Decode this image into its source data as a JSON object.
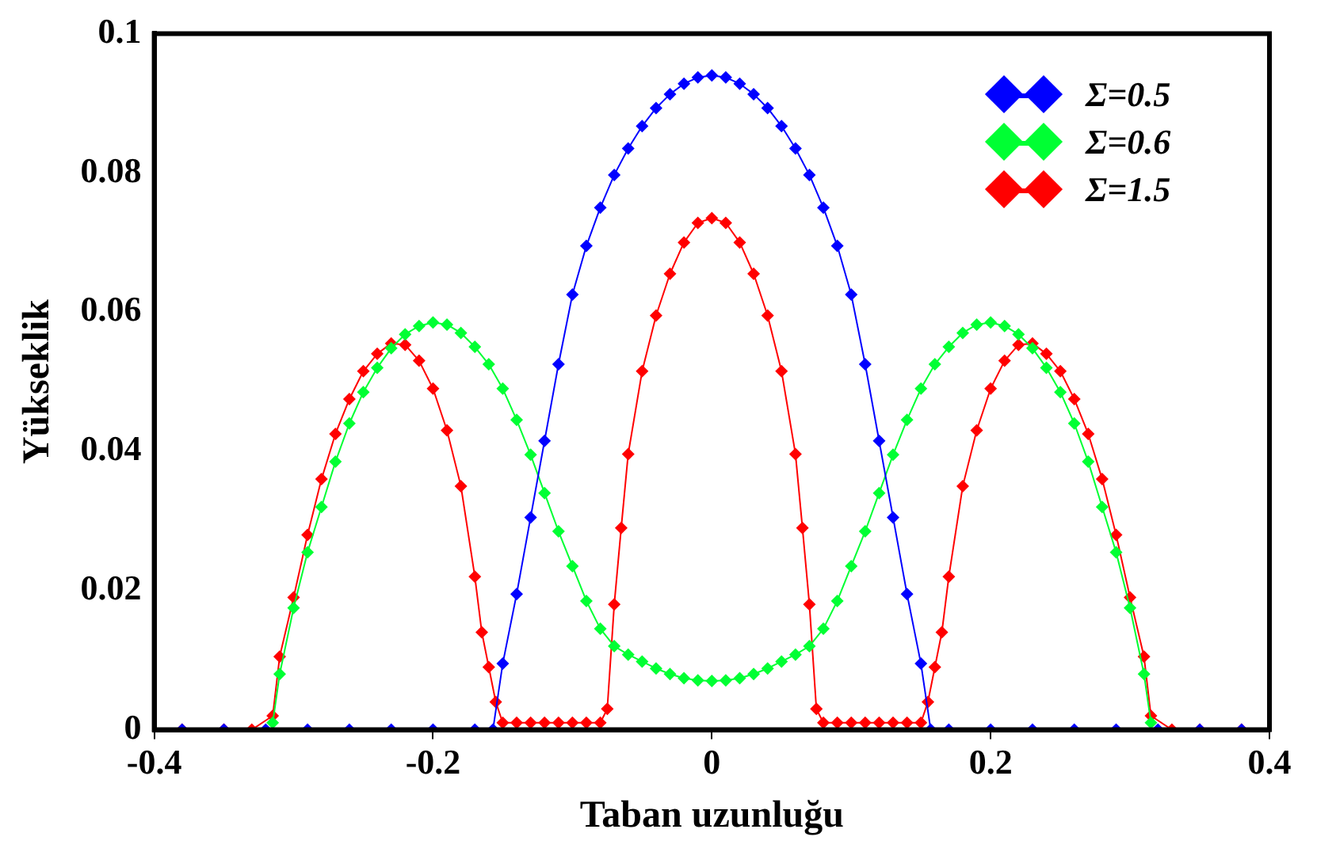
{
  "chart_data": {
    "type": "line",
    "xlabel": "Taban uzunluğu",
    "ylabel": "Yükseklik",
    "xlim": [
      -0.4,
      0.4
    ],
    "xticks": [
      -0.4,
      -0.2,
      0,
      0.2,
      0.4
    ],
    "ylim": [
      0,
      0.1
    ],
    "yticks": [
      0,
      0.02,
      0.04,
      0.06,
      0.08,
      0.1
    ],
    "grid": false,
    "legend": "top right",
    "marker": "diamond",
    "line_style": "solid",
    "series": [
      {
        "name": "Σ=0.5",
        "color": "#0000ff",
        "x": [
          -0.38,
          -0.35,
          -0.32,
          -0.29,
          -0.26,
          -0.23,
          -0.2,
          -0.17,
          -0.157,
          -0.15,
          -0.14,
          -0.13,
          -0.12,
          -0.11,
          -0.1,
          -0.09,
          -0.08,
          -0.07,
          -0.06,
          -0.05,
          -0.04,
          -0.03,
          -0.02,
          -0.01,
          0,
          0.01,
          0.02,
          0.03,
          0.04,
          0.05,
          0.06,
          0.07,
          0.08,
          0.09,
          0.1,
          0.11,
          0.12,
          0.13,
          0.14,
          0.15,
          0.157,
          0.17,
          0.2,
          0.23,
          0.26,
          0.29,
          0.32,
          0.35,
          0.38
        ],
        "values": [
          0,
          0,
          0,
          0,
          0,
          0,
          0,
          0,
          0,
          0.0095,
          0.0195,
          0.0305,
          0.0415,
          0.0525,
          0.0625,
          0.0695,
          0.075,
          0.0797,
          0.0835,
          0.0867,
          0.0893,
          0.0913,
          0.0928,
          0.0937,
          0.094,
          0.0937,
          0.0928,
          0.0913,
          0.0893,
          0.0867,
          0.0835,
          0.0797,
          0.075,
          0.0695,
          0.0625,
          0.0525,
          0.0415,
          0.0305,
          0.0195,
          0.0095,
          0,
          0,
          0,
          0,
          0,
          0,
          0,
          0,
          0
        ]
      },
      {
        "name": "Σ=0.6",
        "color": "#00ff33",
        "x": [
          -0.315,
          -0.31,
          -0.3,
          -0.29,
          -0.28,
          -0.27,
          -0.26,
          -0.25,
          -0.24,
          -0.23,
          -0.22,
          -0.21,
          -0.2,
          -0.19,
          -0.18,
          -0.17,
          -0.16,
          -0.15,
          -0.14,
          -0.13,
          -0.12,
          -0.11,
          -0.1,
          -0.09,
          -0.08,
          -0.07,
          -0.06,
          -0.05,
          -0.04,
          -0.03,
          -0.02,
          -0.01,
          0,
          0.01,
          0.02,
          0.03,
          0.04,
          0.05,
          0.06,
          0.07,
          0.08,
          0.09,
          0.1,
          0.11,
          0.12,
          0.13,
          0.14,
          0.15,
          0.16,
          0.17,
          0.18,
          0.19,
          0.2,
          0.21,
          0.22,
          0.23,
          0.24,
          0.25,
          0.26,
          0.27,
          0.28,
          0.29,
          0.3,
          0.31,
          0.315
        ],
        "values": [
          0.001,
          0.008,
          0.0175,
          0.0255,
          0.032,
          0.0385,
          0.044,
          0.0485,
          0.052,
          0.0548,
          0.0568,
          0.058,
          0.0585,
          0.0582,
          0.057,
          0.055,
          0.0525,
          0.049,
          0.0445,
          0.0395,
          0.034,
          0.0285,
          0.0235,
          0.0185,
          0.0145,
          0.012,
          0.0108,
          0.0098,
          0.0088,
          0.008,
          0.0074,
          0.0071,
          0.007,
          0.0071,
          0.0074,
          0.008,
          0.0088,
          0.0098,
          0.0108,
          0.012,
          0.0145,
          0.0185,
          0.0235,
          0.0285,
          0.034,
          0.0395,
          0.0445,
          0.049,
          0.0525,
          0.055,
          0.057,
          0.0582,
          0.0585,
          0.058,
          0.0568,
          0.0548,
          0.052,
          0.0485,
          0.044,
          0.0385,
          0.032,
          0.0255,
          0.0175,
          0.008,
          0.001
        ]
      },
      {
        "name": "Σ=1.5",
        "color": "#ff0000",
        "x": [
          -0.38,
          -0.35,
          -0.33,
          -0.315,
          -0.31,
          -0.3,
          -0.29,
          -0.28,
          -0.27,
          -0.26,
          -0.25,
          -0.24,
          -0.23,
          -0.22,
          -0.21,
          -0.2,
          -0.19,
          -0.18,
          -0.17,
          -0.165,
          -0.16,
          -0.155,
          -0.15,
          -0.14,
          -0.13,
          -0.12,
          -0.11,
          -0.1,
          -0.09,
          -0.08,
          -0.075,
          -0.07,
          -0.065,
          -0.06,
          -0.05,
          -0.04,
          -0.03,
          -0.02,
          -0.01,
          0,
          0.01,
          0.02,
          0.03,
          0.04,
          0.05,
          0.06,
          0.065,
          0.07,
          0.075,
          0.08,
          0.09,
          0.1,
          0.11,
          0.12,
          0.13,
          0.14,
          0.15,
          0.155,
          0.16,
          0.165,
          0.17,
          0.18,
          0.19,
          0.2,
          0.21,
          0.22,
          0.23,
          0.24,
          0.25,
          0.26,
          0.27,
          0.28,
          0.29,
          0.3,
          0.31,
          0.315,
          0.33,
          0.35,
          0.38
        ],
        "values": [
          0,
          0,
          0,
          0.002,
          0.0105,
          0.019,
          0.028,
          0.036,
          0.0425,
          0.0475,
          0.0515,
          0.054,
          0.0555,
          0.0553,
          0.053,
          0.049,
          0.043,
          0.035,
          0.022,
          0.014,
          0.009,
          0.004,
          0.001,
          0.001,
          0.001,
          0.001,
          0.001,
          0.001,
          0.001,
          0.001,
          0.003,
          0.018,
          0.029,
          0.0396,
          0.0515,
          0.0595,
          0.0655,
          0.07,
          0.0728,
          0.0735,
          0.0728,
          0.07,
          0.0655,
          0.0595,
          0.0515,
          0.0396,
          0.029,
          0.018,
          0.003,
          0.001,
          0.001,
          0.001,
          0.001,
          0.001,
          0.001,
          0.001,
          0.001,
          0.004,
          0.009,
          0.014,
          0.022,
          0.035,
          0.043,
          0.049,
          0.053,
          0.0553,
          0.0555,
          0.054,
          0.0515,
          0.0475,
          0.0425,
          0.036,
          0.028,
          0.019,
          0.0105,
          0.002,
          0,
          0,
          0
        ]
      }
    ]
  }
}
